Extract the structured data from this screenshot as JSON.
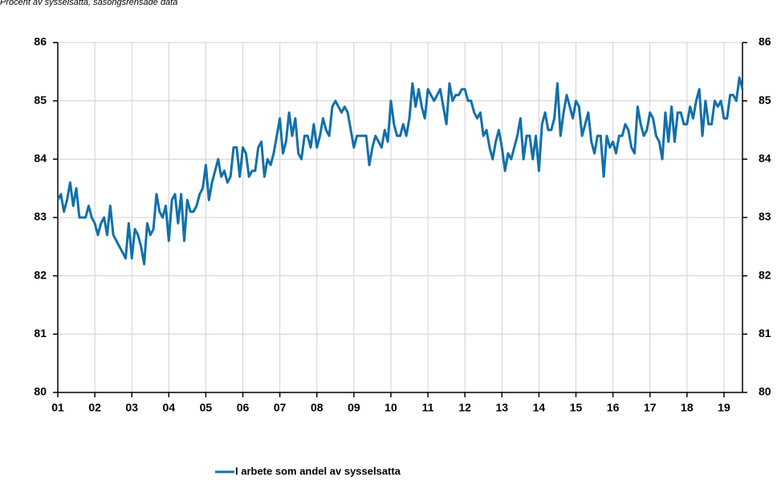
{
  "chart_data": {
    "type": "line",
    "subtitle": "Procent av sysselsatta, säsongsrensade data",
    "categories": [
      "01",
      null,
      null,
      null,
      null,
      null,
      null,
      null,
      null,
      null,
      null,
      null,
      "02",
      null,
      null,
      null,
      null,
      null,
      null,
      null,
      null,
      null,
      null,
      null,
      "03",
      null,
      null,
      null,
      null,
      null,
      null,
      null,
      null,
      null,
      null,
      null,
      "04",
      null,
      null,
      null,
      null,
      null,
      null,
      null,
      null,
      null,
      null,
      null,
      "05",
      null,
      null,
      null,
      null,
      null,
      null,
      null,
      null,
      null,
      null,
      null,
      "06",
      null,
      null,
      null,
      null,
      null,
      null,
      null,
      null,
      null,
      null,
      null,
      "07",
      null,
      null,
      null,
      null,
      null,
      null,
      null,
      null,
      null,
      null,
      null,
      "08",
      null,
      null,
      null,
      null,
      null,
      null,
      null,
      null,
      null,
      null,
      null,
      "09",
      null,
      null,
      null,
      null,
      null,
      null,
      null,
      null,
      null,
      null,
      null,
      "10",
      null,
      null,
      null,
      null,
      null,
      null,
      null,
      null,
      null,
      null,
      null,
      "11",
      null,
      null,
      null,
      null,
      null,
      null,
      null,
      null,
      null,
      null,
      null,
      "12",
      null,
      null,
      null,
      null,
      null,
      null,
      null,
      null,
      null,
      null,
      null,
      "13",
      null,
      null,
      null,
      null,
      null,
      null,
      null,
      null,
      null,
      null,
      null,
      "14",
      null,
      null,
      null,
      null,
      null,
      null,
      null,
      null,
      null,
      null,
      null,
      "15",
      null,
      null,
      null,
      null,
      null,
      null,
      null,
      null,
      null,
      null,
      null,
      "16",
      null,
      null,
      null,
      null,
      null,
      null,
      null,
      null,
      null,
      null,
      null,
      "17",
      null,
      null,
      null,
      null,
      null,
      null,
      null,
      null,
      null,
      null,
      null,
      "18",
      null,
      null,
      null,
      null,
      null,
      null,
      null,
      null,
      null,
      null,
      null,
      "19",
      null,
      null,
      null,
      null,
      null,
      null
    ],
    "series": [
      {
        "name": "I arbete som andel av sysselsatta",
        "color": "#1170aa",
        "values": [
          83.3,
          83.4,
          83.1,
          83.3,
          83.6,
          83.2,
          83.5,
          83.0,
          83.0,
          83.0,
          83.2,
          83.0,
          82.9,
          82.7,
          82.9,
          83.0,
          82.7,
          83.2,
          82.7,
          82.6,
          82.5,
          82.4,
          82.3,
          82.9,
          82.3,
          82.8,
          82.7,
          82.5,
          82.2,
          82.9,
          82.7,
          82.8,
          83.4,
          83.1,
          83.0,
          83.2,
          82.6,
          83.3,
          83.4,
          82.9,
          83.4,
          82.6,
          83.3,
          83.1,
          83.1,
          83.2,
          83.4,
          83.5,
          83.9,
          83.3,
          83.6,
          83.8,
          84.0,
          83.7,
          83.8,
          83.6,
          83.7,
          84.2,
          84.2,
          83.7,
          84.2,
          84.1,
          83.7,
          83.8,
          83.8,
          84.2,
          84.3,
          83.7,
          84.0,
          83.9,
          84.1,
          84.4,
          84.7,
          84.1,
          84.3,
          84.8,
          84.4,
          84.7,
          84.1,
          84.0,
          84.4,
          84.4,
          84.2,
          84.6,
          84.2,
          84.4,
          84.7,
          84.5,
          84.4,
          84.9,
          85.0,
          84.9,
          84.8,
          84.9,
          84.8,
          84.5,
          84.2,
          84.4,
          84.4,
          84.4,
          84.4,
          83.9,
          84.2,
          84.4,
          84.3,
          84.2,
          84.5,
          84.3,
          85.0,
          84.6,
          84.4,
          84.4,
          84.6,
          84.4,
          84.7,
          85.3,
          84.9,
          85.2,
          84.9,
          84.7,
          85.2,
          85.1,
          85.0,
          85.1,
          85.2,
          84.9,
          84.6,
          85.3,
          85.0,
          85.1,
          85.1,
          85.2,
          85.2,
          85.0,
          85.0,
          84.8,
          84.7,
          84.8,
          84.4,
          84.5,
          84.2,
          84.0,
          84.3,
          84.5,
          84.2,
          83.8,
          84.1,
          84.0,
          84.2,
          84.4,
          84.7,
          84.0,
          84.4,
          84.4,
          84.0,
          84.4,
          83.8,
          84.6,
          84.8,
          84.5,
          84.5,
          84.7,
          85.3,
          84.4,
          84.8,
          85.1,
          84.9,
          84.7,
          85.0,
          84.9,
          84.4,
          84.6,
          84.8,
          84.3,
          84.1,
          84.4,
          84.4,
          83.7,
          84.4,
          84.2,
          84.3,
          84.1,
          84.4,
          84.4,
          84.6,
          84.5,
          84.2,
          84.1,
          84.9,
          84.6,
          84.4,
          84.5,
          84.8,
          84.7,
          84.4,
          84.3,
          84.0,
          84.8,
          84.3,
          84.9,
          84.3,
          84.8,
          84.8,
          84.6,
          84.6,
          84.9,
          84.7,
          85.0,
          85.2,
          84.4,
          85.0,
          84.6,
          84.6,
          85.0,
          84.9,
          85.0,
          84.7,
          84.7,
          85.1,
          85.1,
          85.0,
          85.4,
          85.2
        ]
      }
    ],
    "ylim": [
      80,
      86
    ],
    "yticks": [
      80,
      81,
      82,
      83,
      84,
      85,
      86
    ],
    "y2lim": [
      80,
      86
    ],
    "y2ticks": [
      80,
      81,
      82,
      83,
      84,
      85,
      86
    ],
    "grid": true,
    "legend": "bottom"
  }
}
